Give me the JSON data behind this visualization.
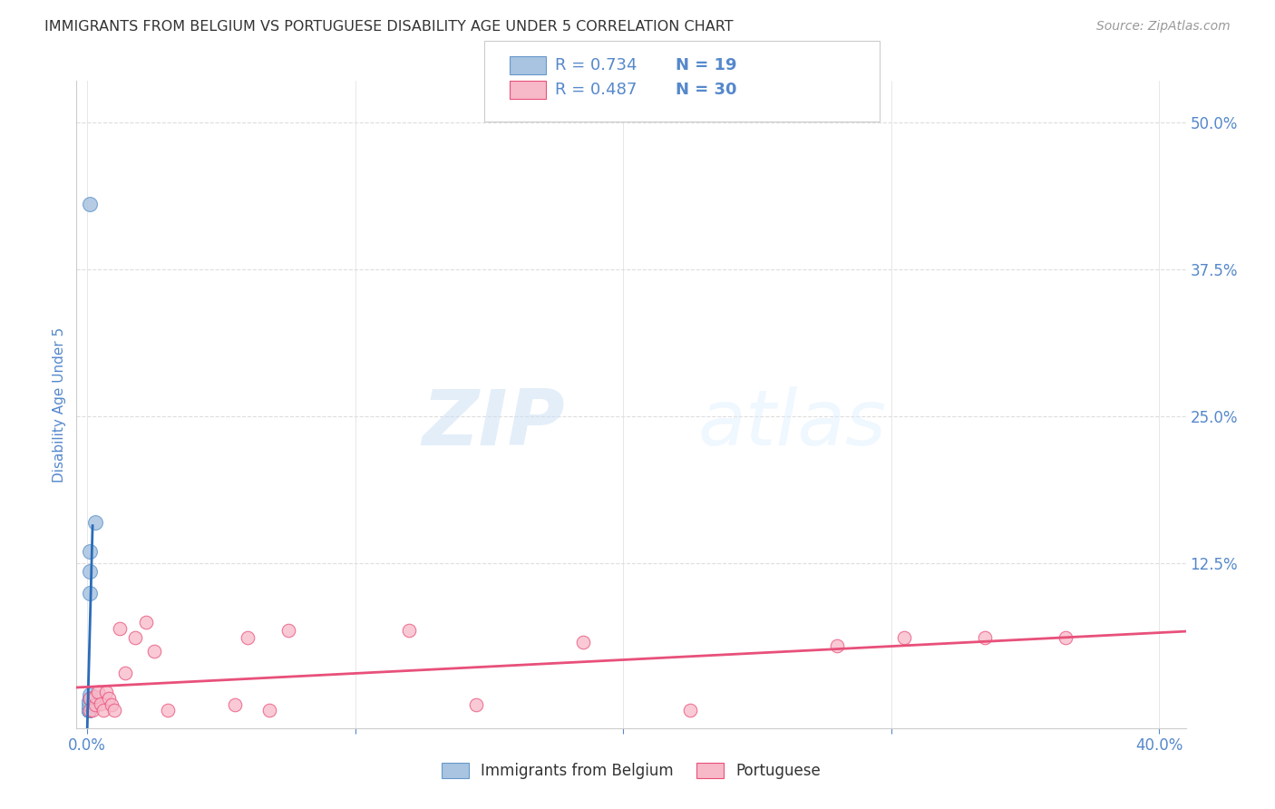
{
  "title": "IMMIGRANTS FROM BELGIUM VS PORTUGUESE DISABILITY AGE UNDER 5 CORRELATION CHART",
  "source": "Source: ZipAtlas.com",
  "ylabel": "Disability Age Under 5",
  "legend_label1": "Immigrants from Belgium",
  "legend_label2": "Portuguese",
  "r1": 0.734,
  "n1": 19,
  "r2": 0.487,
  "n2": 30,
  "color1": "#a8c4e0",
  "color1_line": "#2b6cb8",
  "color1_edge": "#6699cc",
  "color2": "#f7b8c8",
  "color2_line": "#e8507a",
  "color2_edge": "#e8507a",
  "xlim": [
    -0.004,
    0.41
  ],
  "ylim": [
    -0.015,
    0.535
  ],
  "xticks": [
    0.0,
    0.1,
    0.2,
    0.3,
    0.4
  ],
  "xtick_labels": [
    "0.0%",
    "",
    "",
    "",
    "40.0%"
  ],
  "ytick_labels_right": [
    "50.0%",
    "37.5%",
    "25.0%",
    "12.5%"
  ],
  "ytick_vals_right": [
    0.5,
    0.375,
    0.25,
    0.125
  ],
  "watermark_zip": "ZIP",
  "watermark_atlas": "atlas",
  "belgium_x": [
    0.0005,
    0.0005,
    0.0005,
    0.0005,
    0.0005,
    0.0005,
    0.0005,
    0.0005,
    0.0005,
    0.0005,
    0.0005,
    0.0005,
    0.0008,
    0.001,
    0.001,
    0.001,
    0.001,
    0.001,
    0.003
  ],
  "belgium_y": [
    0.0,
    0.0,
    0.0,
    0.0,
    0.0,
    0.0,
    0.0,
    0.0,
    0.0,
    0.0,
    0.005,
    0.008,
    0.01,
    0.013,
    0.1,
    0.118,
    0.135,
    0.43,
    0.16
  ],
  "portuguese_x": [
    0.001,
    0.001,
    0.002,
    0.003,
    0.003,
    0.004,
    0.005,
    0.006,
    0.007,
    0.008,
    0.009,
    0.01,
    0.012,
    0.014,
    0.018,
    0.022,
    0.025,
    0.03,
    0.055,
    0.06,
    0.068,
    0.075,
    0.12,
    0.145,
    0.185,
    0.225,
    0.28,
    0.305,
    0.335,
    0.365
  ],
  "portuguese_y": [
    0.01,
    0.0,
    0.0,
    0.005,
    0.012,
    0.016,
    0.006,
    0.0,
    0.016,
    0.01,
    0.005,
    0.0,
    0.07,
    0.032,
    0.062,
    0.075,
    0.05,
    0.0,
    0.005,
    0.062,
    0.0,
    0.068,
    0.068,
    0.005,
    0.058,
    0.0,
    0.055,
    0.062,
    0.062,
    0.062
  ],
  "title_color": "#333333",
  "tick_color": "#5588cc",
  "grid_color": "#dddddd",
  "legend_border_color": "#cccccc",
  "background_color": "#ffffff"
}
